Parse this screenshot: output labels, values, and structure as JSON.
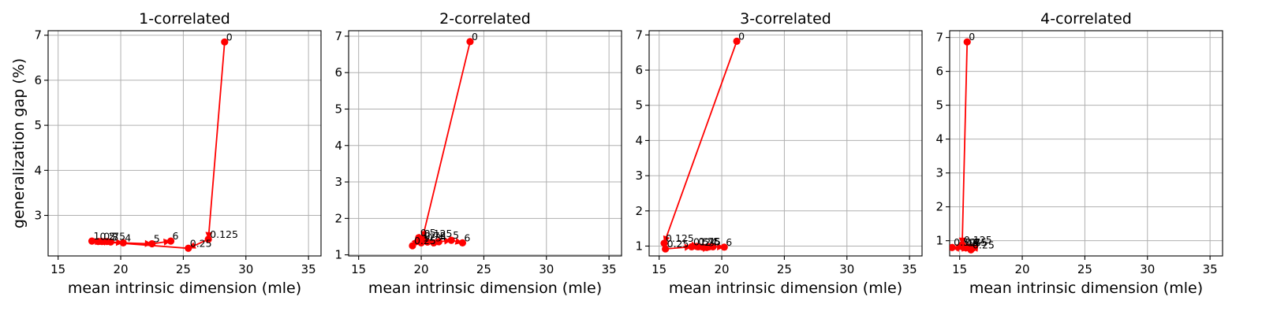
{
  "chart_data": [
    {
      "type": "line",
      "title": "1-correlated",
      "xlabel": "mean intrinsic dimension (mle)",
      "ylabel": "generalization gap (%)",
      "xlim": [
        14.2,
        36.0
      ],
      "ylim": [
        2.1,
        7.1
      ],
      "xticks": [
        15,
        20,
        25,
        30,
        35
      ],
      "yticks": [
        3,
        4,
        5,
        6,
        7
      ],
      "grid": true,
      "color": "#ff0000",
      "points": [
        {
          "label": "0",
          "x": 28.3,
          "y": 6.85
        },
        {
          "label": "0.125",
          "x": 27.0,
          "y": 2.47
        },
        {
          "label": "0.25",
          "x": 25.4,
          "y": 2.27
        },
        {
          "label": "0.5",
          "x": 18.2,
          "y": 2.42
        },
        {
          "label": "0.75",
          "x": 18.5,
          "y": 2.42
        },
        {
          "label": "1",
          "x": 17.7,
          "y": 2.43
        },
        {
          "label": "2",
          "x": 18.9,
          "y": 2.42
        },
        {
          "label": "3",
          "x": 19.2,
          "y": 2.41
        },
        {
          "label": "4",
          "x": 20.2,
          "y": 2.39
        },
        {
          "label": "5",
          "x": 22.5,
          "y": 2.37
        },
        {
          "label": "6",
          "x": 24.0,
          "y": 2.43
        }
      ]
    },
    {
      "type": "line",
      "title": "2-correlated",
      "xlabel": "mean intrinsic dimension (mle)",
      "ylabel": "",
      "xlim": [
        14.2,
        36.0
      ],
      "ylim": [
        0.97,
        7.15
      ],
      "xticks": [
        15,
        20,
        25,
        30,
        35
      ],
      "yticks": [
        1,
        2,
        3,
        4,
        5,
        6,
        7
      ],
      "grid": true,
      "color": "#ff0000",
      "points": [
        {
          "label": "0",
          "x": 23.9,
          "y": 6.85
        },
        {
          "label": "0.125",
          "x": 20.1,
          "y": 1.45
        },
        {
          "label": "0.25",
          "x": 19.3,
          "y": 1.25
        },
        {
          "label": "0.5",
          "x": 19.8,
          "y": 1.47
        },
        {
          "label": "0.75",
          "x": 20.1,
          "y": 1.38
        },
        {
          "label": "1",
          "x": 20.0,
          "y": 1.33
        },
        {
          "label": "2",
          "x": 20.5,
          "y": 1.35
        },
        {
          "label": "3",
          "x": 21.0,
          "y": 1.33
        },
        {
          "label": "4",
          "x": 21.4,
          "y": 1.36
        },
        {
          "label": "5",
          "x": 22.4,
          "y": 1.4
        },
        {
          "label": "6",
          "x": 23.3,
          "y": 1.33
        }
      ]
    },
    {
      "type": "line",
      "title": "3-correlated",
      "xlabel": "mean intrinsic dimension (mle)",
      "ylabel": "",
      "xlim": [
        14.2,
        36.0
      ],
      "ylim": [
        0.72,
        7.12
      ],
      "xticks": [
        15,
        20,
        25,
        30,
        35
      ],
      "yticks": [
        1,
        2,
        3,
        4,
        5,
        6,
        7
      ],
      "grid": true,
      "color": "#ff0000",
      "points": [
        {
          "label": "0",
          "x": 21.2,
          "y": 6.82
        },
        {
          "label": "0.125",
          "x": 15.4,
          "y": 1.08
        },
        {
          "label": "0.25",
          "x": 15.5,
          "y": 0.92
        },
        {
          "label": "0.5",
          "x": 17.6,
          "y": 0.98
        },
        {
          "label": "0.75",
          "x": 18.0,
          "y": 0.99
        },
        {
          "label": "1",
          "x": 18.1,
          "y": 0.98
        },
        {
          "label": "2",
          "x": 18.5,
          "y": 0.97
        },
        {
          "label": "3",
          "x": 18.8,
          "y": 0.96
        },
        {
          "label": "4",
          "x": 19.0,
          "y": 0.98
        },
        {
          "label": "5",
          "x": 19.3,
          "y": 0.98
        },
        {
          "label": "6",
          "x": 20.2,
          "y": 0.97
        }
      ]
    },
    {
      "type": "line",
      "title": "4-correlated",
      "xlabel": "mean intrinsic dimension (mle)",
      "ylabel": "",
      "xlim": [
        14.2,
        36.0
      ],
      "ylim": [
        0.55,
        7.2
      ],
      "xticks": [
        15,
        20,
        25,
        30,
        35
      ],
      "yticks": [
        1,
        2,
        3,
        4,
        5,
        6,
        7
      ],
      "grid": true,
      "color": "#ff0000",
      "points": [
        {
          "label": "0",
          "x": 15.6,
          "y": 6.87
        },
        {
          "label": "0.125",
          "x": 15.2,
          "y": 0.88
        },
        {
          "label": "0.25",
          "x": 15.9,
          "y": 0.73
        },
        {
          "label": "0.5",
          "x": 14.4,
          "y": 0.8
        },
        {
          "label": "0.75",
          "x": 15.3,
          "y": 0.8
        },
        {
          "label": "1",
          "x": 15.5,
          "y": 0.79
        },
        {
          "label": "2",
          "x": 15.7,
          "y": 0.8
        },
        {
          "label": "3",
          "x": 15.8,
          "y": 0.79
        },
        {
          "label": "4",
          "x": 16.0,
          "y": 0.8
        },
        {
          "label": "5",
          "x": 16.1,
          "y": 0.79
        },
        {
          "label": "6",
          "x": 15.9,
          "y": 0.8
        }
      ]
    }
  ]
}
